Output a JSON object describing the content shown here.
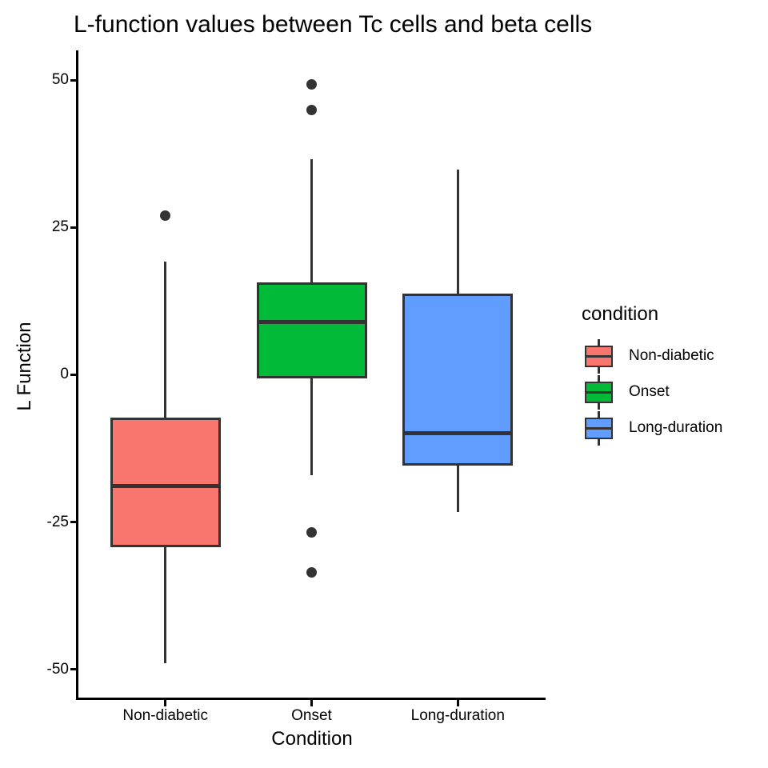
{
  "chart_data": {
    "type": "boxplot",
    "title": "L-function values between Tc cells and beta cells",
    "xlabel": "Condition",
    "ylabel": "L Function",
    "categories": [
      "Non-diabetic",
      "Onset",
      "Long-duration"
    ],
    "yticks": [
      50,
      25,
      0,
      -25,
      -50
    ],
    "ylim": [
      -55,
      55
    ],
    "grid": false,
    "legend_position": "right",
    "line_color": "#333333",
    "axis_color": "#000000",
    "series": [
      {
        "name": "Non-diabetic",
        "color": "#F8766D",
        "whisker_low": -48.9,
        "q1": -29.3,
        "median": -18.9,
        "q3": -7.3,
        "whisker_high": 19.2,
        "outliers": [
          27.0
        ]
      },
      {
        "name": "Onset",
        "color": "#00BA38",
        "whisker_low": -17.1,
        "q1": -0.7,
        "median": 9.0,
        "q3": 15.6,
        "whisker_high": 36.6,
        "outliers": [
          49.2,
          44.9,
          -26.7,
          -33.5
        ]
      },
      {
        "name": "Long-duration",
        "color": "#619CFF",
        "whisker_low": -23.3,
        "q1": -15.4,
        "median": -9.9,
        "q3": 13.8,
        "whisker_high": 34.8,
        "outliers": []
      }
    ]
  },
  "legend": {
    "title": "condition"
  }
}
